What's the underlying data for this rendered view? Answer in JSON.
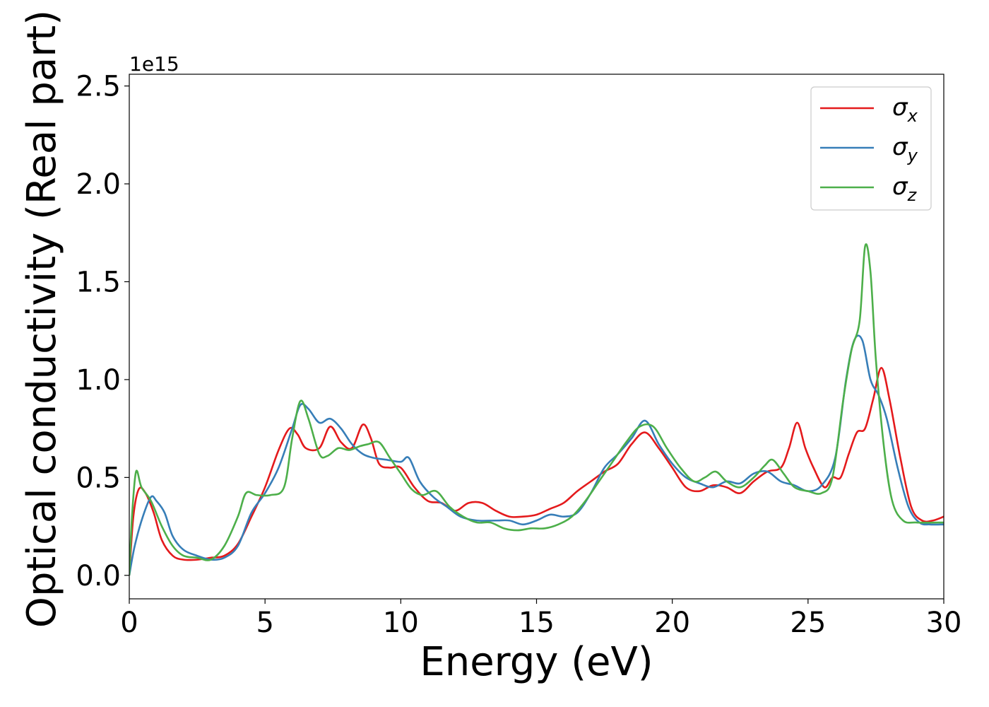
{
  "chart_data": {
    "type": "line",
    "xlabel": "Energy (eV)",
    "ylabel": "Optical conductivity (Real part)",
    "y_offset_text": "1e15",
    "xlim": [
      0,
      30
    ],
    "ylim": [
      -0.12,
      2.56
    ],
    "xticks": [
      0,
      5,
      10,
      15,
      20,
      25,
      30
    ],
    "xtick_labels": [
      "0",
      "5",
      "10",
      "15",
      "20",
      "25",
      "30"
    ],
    "yticks": [
      0.0,
      0.5,
      1.0,
      1.5,
      2.0,
      2.5
    ],
    "ytick_labels": [
      "0.0",
      "0.5",
      "1.0",
      "1.5",
      "2.0",
      "2.5"
    ],
    "grid": false,
    "legend_position": "top-right",
    "series": [
      {
        "name": "σx",
        "base": "σ",
        "sub": "x",
        "color": "#e41a1c",
        "points": [
          [
            0,
            0
          ],
          [
            0.15,
            0.3
          ],
          [
            0.35,
            0.44
          ],
          [
            0.6,
            0.42
          ],
          [
            0.9,
            0.32
          ],
          [
            1.2,
            0.18
          ],
          [
            1.6,
            0.1
          ],
          [
            2.0,
            0.08
          ],
          [
            2.5,
            0.08
          ],
          [
            3.0,
            0.09
          ],
          [
            3.5,
            0.1
          ],
          [
            4.0,
            0.16
          ],
          [
            4.5,
            0.3
          ],
          [
            5.0,
            0.45
          ],
          [
            5.5,
            0.64
          ],
          [
            5.9,
            0.75
          ],
          [
            6.2,
            0.72
          ],
          [
            6.5,
            0.65
          ],
          [
            7.0,
            0.65
          ],
          [
            7.4,
            0.76
          ],
          [
            7.8,
            0.68
          ],
          [
            8.2,
            0.65
          ],
          [
            8.6,
            0.77
          ],
          [
            8.9,
            0.7
          ],
          [
            9.2,
            0.57
          ],
          [
            9.6,
            0.55
          ],
          [
            10.0,
            0.55
          ],
          [
            10.5,
            0.45
          ],
          [
            11.0,
            0.38
          ],
          [
            11.5,
            0.37
          ],
          [
            12.0,
            0.33
          ],
          [
            12.5,
            0.37
          ],
          [
            13.0,
            0.37
          ],
          [
            13.5,
            0.33
          ],
          [
            14.0,
            0.3
          ],
          [
            14.5,
            0.3
          ],
          [
            15.0,
            0.31
          ],
          [
            15.5,
            0.34
          ],
          [
            16.0,
            0.37
          ],
          [
            16.5,
            0.43
          ],
          [
            17.0,
            0.48
          ],
          [
            17.5,
            0.53
          ],
          [
            18.0,
            0.57
          ],
          [
            18.5,
            0.67
          ],
          [
            19.0,
            0.73
          ],
          [
            19.5,
            0.65
          ],
          [
            20.0,
            0.55
          ],
          [
            20.5,
            0.45
          ],
          [
            21.0,
            0.43
          ],
          [
            21.5,
            0.46
          ],
          [
            22.0,
            0.45
          ],
          [
            22.5,
            0.42
          ],
          [
            23.0,
            0.48
          ],
          [
            23.5,
            0.53
          ],
          [
            24.0,
            0.55
          ],
          [
            24.3,
            0.65
          ],
          [
            24.6,
            0.78
          ],
          [
            24.9,
            0.65
          ],
          [
            25.2,
            0.55
          ],
          [
            25.6,
            0.45
          ],
          [
            25.9,
            0.5
          ],
          [
            26.2,
            0.5
          ],
          [
            26.5,
            0.62
          ],
          [
            26.8,
            0.73
          ],
          [
            27.1,
            0.75
          ],
          [
            27.4,
            0.9
          ],
          [
            27.7,
            1.06
          ],
          [
            28.0,
            0.9
          ],
          [
            28.4,
            0.6
          ],
          [
            28.8,
            0.35
          ],
          [
            29.2,
            0.28
          ],
          [
            29.6,
            0.28
          ],
          [
            30.0,
            0.3
          ]
        ]
      },
      {
        "name": "σy",
        "base": "σ",
        "sub": "y",
        "color": "#377eb8",
        "points": [
          [
            0,
            0
          ],
          [
            0.2,
            0.15
          ],
          [
            0.5,
            0.3
          ],
          [
            0.8,
            0.4
          ],
          [
            1.0,
            0.38
          ],
          [
            1.3,
            0.32
          ],
          [
            1.6,
            0.2
          ],
          [
            2.0,
            0.13
          ],
          [
            2.5,
            0.1
          ],
          [
            3.0,
            0.08
          ],
          [
            3.5,
            0.09
          ],
          [
            4.0,
            0.15
          ],
          [
            4.5,
            0.32
          ],
          [
            5.0,
            0.42
          ],
          [
            5.5,
            0.55
          ],
          [
            6.0,
            0.75
          ],
          [
            6.3,
            0.87
          ],
          [
            6.6,
            0.85
          ],
          [
            7.0,
            0.78
          ],
          [
            7.4,
            0.8
          ],
          [
            7.8,
            0.75
          ],
          [
            8.2,
            0.67
          ],
          [
            8.6,
            0.62
          ],
          [
            9.0,
            0.6
          ],
          [
            9.5,
            0.59
          ],
          [
            10.0,
            0.58
          ],
          [
            10.3,
            0.6
          ],
          [
            10.7,
            0.48
          ],
          [
            11.2,
            0.4
          ],
          [
            11.7,
            0.35
          ],
          [
            12.2,
            0.3
          ],
          [
            12.8,
            0.28
          ],
          [
            13.5,
            0.28
          ],
          [
            14.0,
            0.28
          ],
          [
            14.5,
            0.26
          ],
          [
            15.0,
            0.28
          ],
          [
            15.5,
            0.31
          ],
          [
            16.0,
            0.3
          ],
          [
            16.5,
            0.32
          ],
          [
            17.0,
            0.42
          ],
          [
            17.5,
            0.55
          ],
          [
            18.0,
            0.62
          ],
          [
            18.5,
            0.7
          ],
          [
            19.0,
            0.79
          ],
          [
            19.5,
            0.67
          ],
          [
            20.0,
            0.57
          ],
          [
            20.5,
            0.5
          ],
          [
            21.0,
            0.47
          ],
          [
            21.5,
            0.45
          ],
          [
            22.0,
            0.48
          ],
          [
            22.5,
            0.47
          ],
          [
            23.0,
            0.52
          ],
          [
            23.5,
            0.53
          ],
          [
            24.0,
            0.48
          ],
          [
            24.5,
            0.46
          ],
          [
            25.0,
            0.43
          ],
          [
            25.5,
            0.46
          ],
          [
            26.0,
            0.6
          ],
          [
            26.4,
            1.0
          ],
          [
            26.7,
            1.2
          ],
          [
            27.0,
            1.2
          ],
          [
            27.3,
            1.0
          ],
          [
            27.6,
            0.92
          ],
          [
            27.9,
            0.8
          ],
          [
            28.3,
            0.55
          ],
          [
            28.7,
            0.35
          ],
          [
            29.1,
            0.27
          ],
          [
            29.5,
            0.26
          ],
          [
            30.0,
            0.26
          ]
        ]
      },
      {
        "name": "σz",
        "base": "σ",
        "sub": "z",
        "color": "#4daf4a",
        "points": [
          [
            0,
            0
          ],
          [
            0.1,
            0.3
          ],
          [
            0.25,
            0.53
          ],
          [
            0.45,
            0.45
          ],
          [
            0.8,
            0.38
          ],
          [
            1.2,
            0.25
          ],
          [
            1.6,
            0.15
          ],
          [
            2.0,
            0.1
          ],
          [
            2.5,
            0.09
          ],
          [
            3.0,
            0.08
          ],
          [
            3.5,
            0.15
          ],
          [
            4.0,
            0.3
          ],
          [
            4.3,
            0.42
          ],
          [
            4.7,
            0.41
          ],
          [
            5.2,
            0.41
          ],
          [
            5.7,
            0.45
          ],
          [
            6.0,
            0.7
          ],
          [
            6.3,
            0.89
          ],
          [
            6.6,
            0.8
          ],
          [
            7.0,
            0.62
          ],
          [
            7.3,
            0.61
          ],
          [
            7.7,
            0.65
          ],
          [
            8.1,
            0.64
          ],
          [
            8.5,
            0.66
          ],
          [
            8.8,
            0.67
          ],
          [
            9.2,
            0.68
          ],
          [
            9.6,
            0.6
          ],
          [
            10.0,
            0.52
          ],
          [
            10.4,
            0.44
          ],
          [
            10.8,
            0.41
          ],
          [
            11.3,
            0.43
          ],
          [
            11.8,
            0.35
          ],
          [
            12.3,
            0.3
          ],
          [
            12.8,
            0.27
          ],
          [
            13.3,
            0.27
          ],
          [
            13.8,
            0.24
          ],
          [
            14.3,
            0.23
          ],
          [
            14.8,
            0.24
          ],
          [
            15.3,
            0.24
          ],
          [
            15.8,
            0.26
          ],
          [
            16.3,
            0.3
          ],
          [
            16.8,
            0.38
          ],
          [
            17.3,
            0.48
          ],
          [
            17.8,
            0.58
          ],
          [
            18.3,
            0.68
          ],
          [
            18.8,
            0.76
          ],
          [
            19.3,
            0.76
          ],
          [
            19.8,
            0.65
          ],
          [
            20.3,
            0.55
          ],
          [
            20.8,
            0.48
          ],
          [
            21.2,
            0.5
          ],
          [
            21.6,
            0.53
          ],
          [
            22.0,
            0.48
          ],
          [
            22.5,
            0.45
          ],
          [
            23.0,
            0.5
          ],
          [
            23.4,
            0.56
          ],
          [
            23.7,
            0.59
          ],
          [
            24.1,
            0.52
          ],
          [
            24.5,
            0.45
          ],
          [
            25.0,
            0.43
          ],
          [
            25.5,
            0.42
          ],
          [
            25.9,
            0.5
          ],
          [
            26.3,
            0.9
          ],
          [
            26.6,
            1.15
          ],
          [
            26.9,
            1.3
          ],
          [
            27.1,
            1.68
          ],
          [
            27.3,
            1.55
          ],
          [
            27.5,
            1.1
          ],
          [
            27.8,
            0.65
          ],
          [
            28.1,
            0.38
          ],
          [
            28.5,
            0.28
          ],
          [
            29.0,
            0.27
          ],
          [
            30.0,
            0.27
          ]
        ]
      }
    ]
  }
}
